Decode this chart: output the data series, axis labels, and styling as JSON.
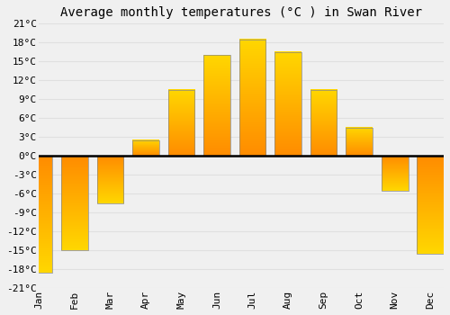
{
  "title": "Average monthly temperatures (°C ) in Swan River",
  "months": [
    "Jan",
    "Feb",
    "Mar",
    "Apr",
    "May",
    "Jun",
    "Jul",
    "Aug",
    "Sep",
    "Oct",
    "Nov",
    "Dec"
  ],
  "values": [
    -18.5,
    -15.0,
    -7.5,
    2.5,
    10.5,
    16.0,
    18.5,
    16.5,
    10.5,
    4.5,
    -5.5,
    -15.5
  ],
  "bar_color": "#FFA020",
  "bar_edge_color": "#888888",
  "background_color": "#f0f0f0",
  "grid_color": "#e0e0e0",
  "ylim": [
    -21,
    21
  ],
  "yticks": [
    -21,
    -18,
    -15,
    -12,
    -9,
    -6,
    -3,
    0,
    3,
    6,
    9,
    12,
    15,
    18,
    21
  ],
  "ytick_labels": [
    "-21°C",
    "-18°C",
    "-15°C",
    "-12°C",
    "-9°C",
    "-6°C",
    "-3°C",
    "0°C",
    "3°C",
    "6°C",
    "9°C",
    "12°C",
    "15°C",
    "18°C",
    "21°C"
  ],
  "title_fontsize": 10,
  "tick_fontsize": 8,
  "bar_width": 0.75
}
